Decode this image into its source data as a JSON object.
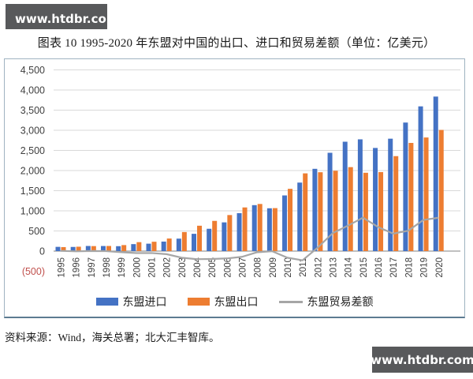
{
  "watermark_top": {
    "text": "www.htdbr.com",
    "bg_color": "#58595b",
    "text_color": "#ffffff"
  },
  "watermark_bottom": {
    "text": "www.htdbr.com"
  },
  "title": "图表 10 1995-2020 年东盟对中国的出口、进口和贸易差额（单位：亿美元）",
  "source_note": "资料来源：Wind，海关总署；北大汇丰智库。",
  "chart_data": {
    "type": "bar",
    "subtype": "grouped bars with overlay line",
    "unit": "亿美元",
    "categories": [
      "1995",
      "1996",
      "1997",
      "1998",
      "1999",
      "2000",
      "2001",
      "2002",
      "2003",
      "2004",
      "2005",
      "2006",
      "2007",
      "2008",
      "2009",
      "2010",
      "2011",
      "2012",
      "2013",
      "2014",
      "2015",
      "2016",
      "2017",
      "2018",
      "2019",
      "2020"
    ],
    "series": [
      {
        "name": "东盟进口",
        "type": "bar",
        "color": "#4472C4",
        "values": [
          105,
          103,
          127,
          126,
          122,
          173,
          184,
          236,
          309,
          429,
          554,
          713,
          942,
          1141,
          1063,
          1382,
          1701,
          2043,
          2441,
          2716,
          2775,
          2561,
          2791,
          3192,
          3594,
          3837
        ]
      },
      {
        "name": "东盟出口",
        "type": "bar",
        "color": "#ED7D31",
        "values": [
          99,
          109,
          124,
          127,
          149,
          222,
          232,
          312,
          473,
          630,
          750,
          895,
          1084,
          1170,
          1067,
          1546,
          1930,
          1958,
          1995,
          2085,
          1945,
          1962,
          2358,
          2686,
          2821,
          3009
        ]
      },
      {
        "name": "东盟贸易差额",
        "type": "line",
        "color": "#A6A6A6",
        "values": [
          6,
          -6,
          3,
          -1,
          -27,
          -49,
          -48,
          -76,
          -164,
          -201,
          -196,
          -182,
          -142,
          -29,
          -4,
          -164,
          -229,
          85,
          446,
          631,
          830,
          599,
          433,
          506,
          773,
          828
        ]
      }
    ],
    "ylim": [
      -500,
      4500
    ],
    "ytick_values": [
      4500,
      4000,
      3500,
      3000,
      2500,
      2000,
      1500,
      1000,
      500,
      0,
      -500
    ],
    "ytick_labels": [
      "4,500",
      "4,000",
      "3,500",
      "3,000",
      "2,500",
      "2,000",
      "1,500",
      "1,000",
      "500",
      "0",
      "(500)"
    ],
    "negative_tick_color": "#C0504D",
    "tick_label_color": "#404040",
    "gridline_color": "#d9d9d9",
    "axis_line_color": "#9b9b9b",
    "grid": true,
    "legend_position": "bottom",
    "xlabel": "",
    "ylabel": ""
  }
}
